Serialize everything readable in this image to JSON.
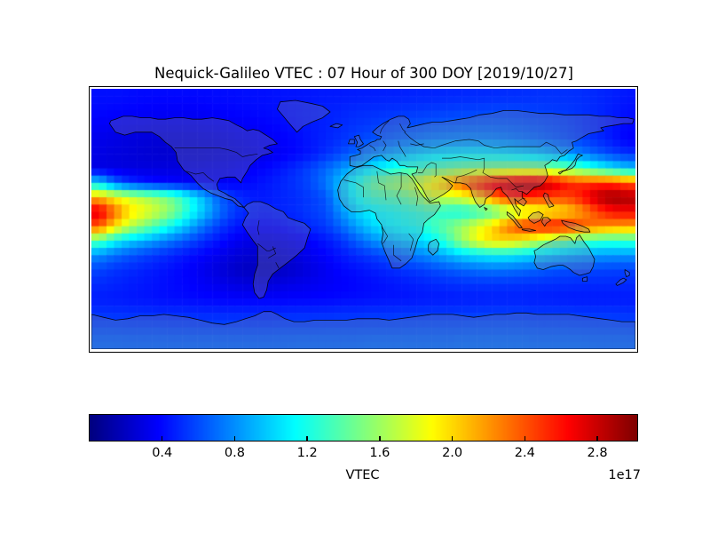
{
  "figure": {
    "background_color": "#ffffff",
    "frame_color": "#000000"
  },
  "chart_data": {
    "type": "heatmap",
    "title": "Nequick-Galileo VTEC : 07 Hour of 300 DOY [2019/10/27]",
    "colormap": "jet",
    "projection": "equirectangular world map with coastlines and country borders",
    "colorbar": {
      "label": "VTEC",
      "offset_label": "1e17",
      "vmin": 0,
      "vmax": 3.02,
      "ticks": [
        "0.4",
        "0.8",
        "1.2",
        "1.6",
        "2.0",
        "2.4",
        "2.8"
      ],
      "orientation": "horizontal"
    },
    "grid": {
      "lon_min": -180,
      "lon_max": 180,
      "lat_min": -90,
      "lat_max": 90,
      "n_lon": 36,
      "n_lat": 18,
      "row_lat_centers": [
        85,
        75,
        65,
        55,
        45,
        35,
        25,
        15,
        5,
        -5,
        -15,
        -25,
        -35,
        -45,
        -55,
        -65,
        -75,
        -85
      ]
    },
    "values_1e17": [
      [
        0.42,
        0.42,
        0.41,
        0.4,
        0.4,
        0.4,
        0.4,
        0.4,
        0.41,
        0.41,
        0.42,
        0.42,
        0.43,
        0.43,
        0.44,
        0.45,
        0.45,
        0.46,
        0.46,
        0.47,
        0.47,
        0.48,
        0.48,
        0.49,
        0.49,
        0.5,
        0.5,
        0.51,
        0.51,
        0.52,
        0.52,
        0.52,
        0.51,
        0.49,
        0.47,
        0.44
      ],
      [
        0.4,
        0.39,
        0.38,
        0.37,
        0.36,
        0.36,
        0.36,
        0.37,
        0.38,
        0.39,
        0.4,
        0.41,
        0.42,
        0.44,
        0.45,
        0.47,
        0.48,
        0.5,
        0.51,
        0.52,
        0.53,
        0.54,
        0.55,
        0.56,
        0.57,
        0.57,
        0.58,
        0.58,
        0.57,
        0.56,
        0.55,
        0.54,
        0.52,
        0.49,
        0.46,
        0.42
      ],
      [
        0.36,
        0.34,
        0.33,
        0.32,
        0.31,
        0.31,
        0.31,
        0.32,
        0.33,
        0.35,
        0.36,
        0.38,
        0.4,
        0.42,
        0.45,
        0.47,
        0.5,
        0.53,
        0.55,
        0.58,
        0.6,
        0.61,
        0.63,
        0.64,
        0.65,
        0.66,
        0.66,
        0.65,
        0.64,
        0.62,
        0.6,
        0.57,
        0.53,
        0.49,
        0.44,
        0.39
      ],
      [
        0.32,
        0.3,
        0.28,
        0.27,
        0.26,
        0.26,
        0.26,
        0.27,
        0.28,
        0.3,
        0.32,
        0.35,
        0.37,
        0.4,
        0.44,
        0.48,
        0.52,
        0.57,
        0.61,
        0.65,
        0.69,
        0.72,
        0.75,
        0.77,
        0.78,
        0.78,
        0.77,
        0.75,
        0.72,
        0.69,
        0.65,
        0.61,
        0.56,
        0.5,
        0.44,
        0.37
      ],
      [
        0.3,
        0.28,
        0.27,
        0.25,
        0.24,
        0.24,
        0.24,
        0.24,
        0.25,
        0.27,
        0.29,
        0.32,
        0.35,
        0.39,
        0.44,
        0.51,
        0.59,
        0.68,
        0.77,
        0.85,
        0.92,
        0.98,
        1.03,
        1.06,
        1.08,
        1.09,
        1.08,
        1.05,
        1.02,
        0.97,
        0.9,
        0.83,
        0.74,
        0.65,
        0.57,
        0.51
      ],
      [
        0.3,
        0.29,
        0.28,
        0.28,
        0.28,
        0.28,
        0.29,
        0.3,
        0.31,
        0.33,
        0.36,
        0.39,
        0.44,
        0.5,
        0.58,
        0.68,
        0.8,
        0.93,
        1.05,
        1.15,
        1.23,
        1.3,
        1.36,
        1.41,
        1.46,
        1.5,
        1.53,
        1.55,
        1.56,
        1.55,
        1.5,
        1.44,
        1.32,
        1.18,
        1.05,
        0.95
      ],
      [
        1.0,
        0.68,
        0.52,
        0.44,
        0.4,
        0.38,
        0.36,
        0.35,
        0.35,
        0.37,
        0.4,
        0.44,
        0.48,
        0.53,
        0.6,
        0.73,
        0.95,
        1.2,
        1.42,
        1.55,
        1.63,
        1.75,
        1.95,
        2.15,
        2.38,
        2.58,
        2.72,
        2.82,
        2.9,
        2.9,
        2.78,
        2.58,
        2.5,
        2.52,
        2.5,
        2.38
      ],
      [
        2.1,
        1.9,
        1.75,
        1.65,
        1.55,
        1.4,
        1.15,
        0.9,
        0.65,
        0.52,
        0.46,
        0.45,
        0.48,
        0.5,
        0.55,
        0.62,
        0.9,
        1.15,
        1.3,
        1.35,
        1.4,
        1.52,
        1.75,
        1.72,
        1.8,
        2.0,
        2.3,
        2.5,
        2.55,
        2.5,
        2.45,
        2.45,
        2.6,
        2.85,
        2.95,
        2.9
      ],
      [
        2.75,
        2.35,
        2.0,
        1.85,
        1.7,
        1.5,
        1.2,
        0.95,
        0.7,
        0.55,
        0.48,
        0.45,
        0.48,
        0.5,
        0.55,
        0.6,
        0.8,
        1.0,
        1.1,
        1.15,
        1.2,
        1.25,
        1.3,
        1.22,
        1.18,
        1.25,
        1.35,
        1.55,
        1.7,
        1.8,
        1.9,
        2.0,
        2.2,
        2.45,
        2.62,
        2.65
      ],
      [
        2.4,
        2.0,
        1.7,
        1.5,
        1.3,
        1.1,
        0.9,
        0.7,
        0.55,
        0.45,
        0.4,
        0.38,
        0.4,
        0.45,
        0.5,
        0.55,
        0.68,
        0.85,
        1.0,
        1.1,
        1.15,
        1.2,
        1.3,
        1.45,
        1.6,
        1.8,
        2.0,
        2.3,
        2.5,
        2.6,
        2.65,
        2.58,
        2.4,
        2.28,
        2.22,
        2.18
      ],
      [
        1.4,
        1.15,
        1.0,
        0.9,
        0.8,
        0.7,
        0.6,
        0.5,
        0.42,
        0.35,
        0.3,
        0.28,
        0.3,
        0.33,
        0.38,
        0.44,
        0.52,
        0.65,
        0.78,
        0.88,
        0.95,
        1.0,
        1.1,
        1.3,
        1.6,
        1.85,
        2.0,
        2.0,
        1.9,
        1.72,
        1.55,
        1.45,
        1.36,
        1.3,
        1.28,
        1.3
      ],
      [
        0.8,
        0.7,
        0.63,
        0.57,
        0.52,
        0.47,
        0.42,
        0.37,
        0.32,
        0.27,
        0.24,
        0.22,
        0.24,
        0.28,
        0.33,
        0.38,
        0.44,
        0.5,
        0.55,
        0.61,
        0.68,
        0.74,
        0.81,
        0.9,
        1.0,
        1.06,
        1.1,
        1.1,
        1.05,
        1.0,
        0.95,
        0.9,
        0.86,
        0.83,
        0.82,
        0.82
      ],
      [
        0.58,
        0.53,
        0.5,
        0.47,
        0.44,
        0.41,
        0.37,
        0.32,
        0.27,
        0.22,
        0.19,
        0.18,
        0.2,
        0.24,
        0.29,
        0.34,
        0.39,
        0.42,
        0.45,
        0.49,
        0.52,
        0.55,
        0.59,
        0.63,
        0.67,
        0.7,
        0.72,
        0.71,
        0.69,
        0.66,
        0.62,
        0.6,
        0.59,
        0.58,
        0.57,
        0.57
      ],
      [
        0.5,
        0.48,
        0.46,
        0.44,
        0.42,
        0.4,
        0.38,
        0.35,
        0.32,
        0.29,
        0.27,
        0.27,
        0.29,
        0.31,
        0.33,
        0.35,
        0.37,
        0.39,
        0.41,
        0.43,
        0.45,
        0.47,
        0.49,
        0.51,
        0.52,
        0.53,
        0.53,
        0.53,
        0.52,
        0.52,
        0.51,
        0.51,
        0.5,
        0.5,
        0.5,
        0.5
      ],
      [
        0.46,
        0.45,
        0.44,
        0.43,
        0.42,
        0.41,
        0.4,
        0.39,
        0.38,
        0.37,
        0.37,
        0.37,
        0.37,
        0.38,
        0.38,
        0.39,
        0.4,
        0.41,
        0.42,
        0.43,
        0.43,
        0.44,
        0.45,
        0.45,
        0.46,
        0.46,
        0.47,
        0.47,
        0.47,
        0.46,
        0.46,
        0.45,
        0.45,
        0.45,
        0.45,
        0.45
      ],
      [
        0.52,
        0.52,
        0.51,
        0.51,
        0.5,
        0.5,
        0.5,
        0.49,
        0.49,
        0.49,
        0.49,
        0.49,
        0.49,
        0.5,
        0.5,
        0.5,
        0.51,
        0.51,
        0.52,
        0.52,
        0.53,
        0.53,
        0.54,
        0.54,
        0.54,
        0.55,
        0.55,
        0.55,
        0.55,
        0.54,
        0.54,
        0.54,
        0.53,
        0.53,
        0.53,
        0.52
      ],
      [
        0.6,
        0.6,
        0.59,
        0.59,
        0.59,
        0.58,
        0.58,
        0.58,
        0.58,
        0.58,
        0.58,
        0.58,
        0.59,
        0.59,
        0.59,
        0.6,
        0.6,
        0.6,
        0.61,
        0.61,
        0.61,
        0.62,
        0.62,
        0.62,
        0.62,
        0.63,
        0.63,
        0.63,
        0.63,
        0.62,
        0.62,
        0.62,
        0.61,
        0.61,
        0.61,
        0.6
      ],
      [
        0.68,
        0.68,
        0.67,
        0.67,
        0.67,
        0.67,
        0.67,
        0.67,
        0.67,
        0.67,
        0.67,
        0.67,
        0.67,
        0.68,
        0.68,
        0.68,
        0.68,
        0.68,
        0.69,
        0.69,
        0.69,
        0.69,
        0.69,
        0.69,
        0.7,
        0.7,
        0.7,
        0.7,
        0.7,
        0.69,
        0.69,
        0.69,
        0.69,
        0.68,
        0.68,
        0.68
      ]
    ]
  }
}
